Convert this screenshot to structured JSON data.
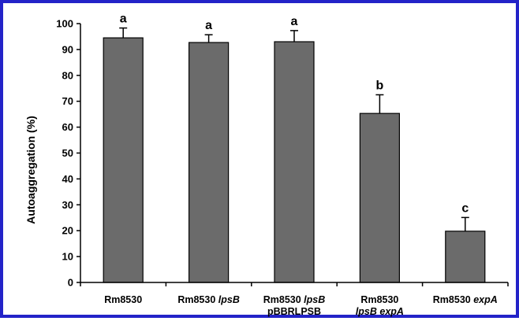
{
  "chart_data": {
    "type": "bar",
    "title": "",
    "xlabel": "",
    "ylabel": "Autoaggregation (%)",
    "ylim": [
      0,
      100
    ],
    "yticks": [
      0,
      10,
      20,
      30,
      40,
      50,
      60,
      70,
      80,
      90,
      100
    ],
    "grid": false,
    "bar_color": "#6b6b6b",
    "frame_color": "#2323c8",
    "categories": [
      {
        "id": "rm8530",
        "lines": [
          [
            {
              "text": "Rm8530",
              "italic": false
            }
          ]
        ]
      },
      {
        "id": "rm8530-lpsb",
        "lines": [
          [
            {
              "text": "Rm8530 ",
              "italic": false
            },
            {
              "text": "lpsB",
              "italic": true
            }
          ]
        ]
      },
      {
        "id": "rm8530-lpsb-pbbrlpsb",
        "lines": [
          [
            {
              "text": "Rm8530 ",
              "italic": false
            },
            {
              "text": "lpsB",
              "italic": true
            }
          ],
          [
            {
              "text": "pBBRLPSB",
              "italic": false
            }
          ]
        ]
      },
      {
        "id": "rm8530-lpsb-expa",
        "lines": [
          [
            {
              "text": "Rm8530",
              "italic": false
            }
          ],
          [
            {
              "text": "lpsB expA",
              "italic": true
            }
          ]
        ]
      },
      {
        "id": "rm8530-expa",
        "lines": [
          [
            {
              "text": "Rm8530 ",
              "italic": false
            },
            {
              "text": "expA",
              "italic": true
            }
          ]
        ]
      }
    ],
    "values": [
      94.5,
      92.7,
      93.0,
      65.3,
      19.8
    ],
    "errors": [
      3.8,
      3.0,
      4.3,
      7.2,
      5.3
    ],
    "significance": [
      "a",
      "a",
      "a",
      "b",
      "c"
    ]
  }
}
